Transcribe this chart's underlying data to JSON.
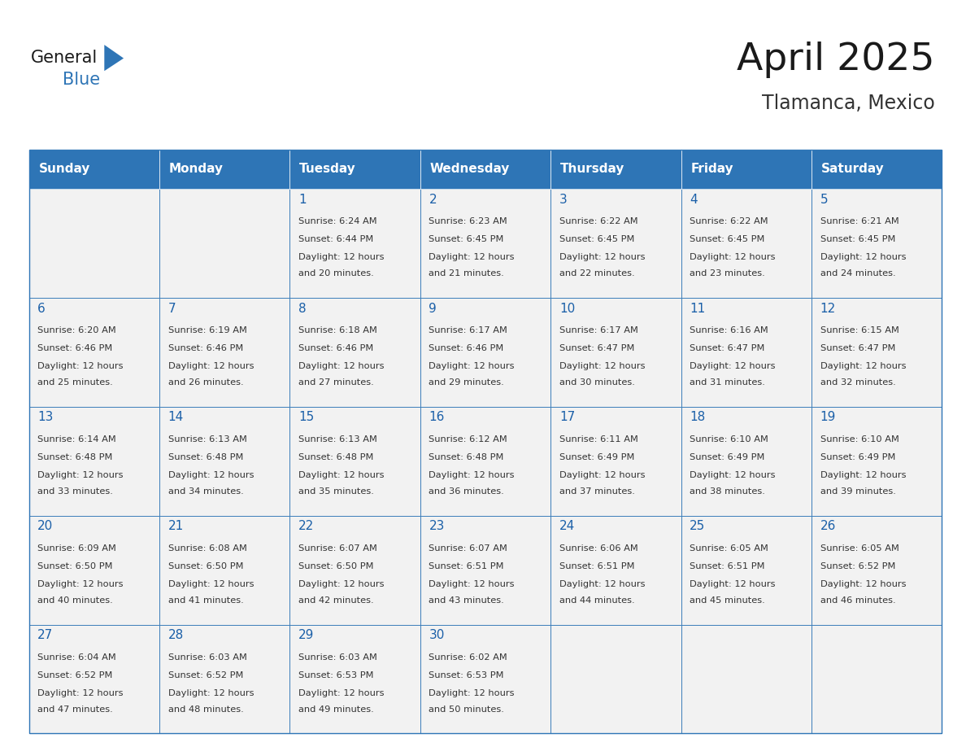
{
  "title": "April 2025",
  "subtitle": "Tlamanca, Mexico",
  "header_bg": "#2E75B6",
  "header_text_color": "#FFFFFF",
  "cell_bg": "#F2F2F2",
  "day_names": [
    "Sunday",
    "Monday",
    "Tuesday",
    "Wednesday",
    "Thursday",
    "Friday",
    "Saturday"
  ],
  "title_color": "#1a1a1a",
  "subtitle_color": "#333333",
  "day_number_color": "#1a5fa8",
  "cell_text_color": "#333333",
  "line_color": "#2E75B6",
  "logo_general_color": "#1a1a1a",
  "logo_blue_color": "#2E75B6",
  "weeks": [
    [
      {
        "date": "",
        "sunrise": "",
        "sunset": "",
        "daylight": ""
      },
      {
        "date": "",
        "sunrise": "",
        "sunset": "",
        "daylight": ""
      },
      {
        "date": "1",
        "sunrise": "6:24 AM",
        "sunset": "6:44 PM",
        "daylight": "12 hours and 20 minutes."
      },
      {
        "date": "2",
        "sunrise": "6:23 AM",
        "sunset": "6:45 PM",
        "daylight": "12 hours and 21 minutes."
      },
      {
        "date": "3",
        "sunrise": "6:22 AM",
        "sunset": "6:45 PM",
        "daylight": "12 hours and 22 minutes."
      },
      {
        "date": "4",
        "sunrise": "6:22 AM",
        "sunset": "6:45 PM",
        "daylight": "12 hours and 23 minutes."
      },
      {
        "date": "5",
        "sunrise": "6:21 AM",
        "sunset": "6:45 PM",
        "daylight": "12 hours and 24 minutes."
      }
    ],
    [
      {
        "date": "6",
        "sunrise": "6:20 AM",
        "sunset": "6:46 PM",
        "daylight": "12 hours and 25 minutes."
      },
      {
        "date": "7",
        "sunrise": "6:19 AM",
        "sunset": "6:46 PM",
        "daylight": "12 hours and 26 minutes."
      },
      {
        "date": "8",
        "sunrise": "6:18 AM",
        "sunset": "6:46 PM",
        "daylight": "12 hours and 27 minutes."
      },
      {
        "date": "9",
        "sunrise": "6:17 AM",
        "sunset": "6:46 PM",
        "daylight": "12 hours and 29 minutes."
      },
      {
        "date": "10",
        "sunrise": "6:17 AM",
        "sunset": "6:47 PM",
        "daylight": "12 hours and 30 minutes."
      },
      {
        "date": "11",
        "sunrise": "6:16 AM",
        "sunset": "6:47 PM",
        "daylight": "12 hours and 31 minutes."
      },
      {
        "date": "12",
        "sunrise": "6:15 AM",
        "sunset": "6:47 PM",
        "daylight": "12 hours and 32 minutes."
      }
    ],
    [
      {
        "date": "13",
        "sunrise": "6:14 AM",
        "sunset": "6:48 PM",
        "daylight": "12 hours and 33 minutes."
      },
      {
        "date": "14",
        "sunrise": "6:13 AM",
        "sunset": "6:48 PM",
        "daylight": "12 hours and 34 minutes."
      },
      {
        "date": "15",
        "sunrise": "6:13 AM",
        "sunset": "6:48 PM",
        "daylight": "12 hours and 35 minutes."
      },
      {
        "date": "16",
        "sunrise": "6:12 AM",
        "sunset": "6:48 PM",
        "daylight": "12 hours and 36 minutes."
      },
      {
        "date": "17",
        "sunrise": "6:11 AM",
        "sunset": "6:49 PM",
        "daylight": "12 hours and 37 minutes."
      },
      {
        "date": "18",
        "sunrise": "6:10 AM",
        "sunset": "6:49 PM",
        "daylight": "12 hours and 38 minutes."
      },
      {
        "date": "19",
        "sunrise": "6:10 AM",
        "sunset": "6:49 PM",
        "daylight": "12 hours and 39 minutes."
      }
    ],
    [
      {
        "date": "20",
        "sunrise": "6:09 AM",
        "sunset": "6:50 PM",
        "daylight": "12 hours and 40 minutes."
      },
      {
        "date": "21",
        "sunrise": "6:08 AM",
        "sunset": "6:50 PM",
        "daylight": "12 hours and 41 minutes."
      },
      {
        "date": "22",
        "sunrise": "6:07 AM",
        "sunset": "6:50 PM",
        "daylight": "12 hours and 42 minutes."
      },
      {
        "date": "23",
        "sunrise": "6:07 AM",
        "sunset": "6:51 PM",
        "daylight": "12 hours and 43 minutes."
      },
      {
        "date": "24",
        "sunrise": "6:06 AM",
        "sunset": "6:51 PM",
        "daylight": "12 hours and 44 minutes."
      },
      {
        "date": "25",
        "sunrise": "6:05 AM",
        "sunset": "6:51 PM",
        "daylight": "12 hours and 45 minutes."
      },
      {
        "date": "26",
        "sunrise": "6:05 AM",
        "sunset": "6:52 PM",
        "daylight": "12 hours and 46 minutes."
      }
    ],
    [
      {
        "date": "27",
        "sunrise": "6:04 AM",
        "sunset": "6:52 PM",
        "daylight": "12 hours and 47 minutes."
      },
      {
        "date": "28",
        "sunrise": "6:03 AM",
        "sunset": "6:52 PM",
        "daylight": "12 hours and 48 minutes."
      },
      {
        "date": "29",
        "sunrise": "6:03 AM",
        "sunset": "6:53 PM",
        "daylight": "12 hours and 49 minutes."
      },
      {
        "date": "30",
        "sunrise": "6:02 AM",
        "sunset": "6:53 PM",
        "daylight": "12 hours and 50 minutes."
      },
      {
        "date": "",
        "sunrise": "",
        "sunset": "",
        "daylight": ""
      },
      {
        "date": "",
        "sunrise": "",
        "sunset": "",
        "daylight": ""
      },
      {
        "date": "",
        "sunrise": "",
        "sunset": "",
        "daylight": ""
      }
    ]
  ]
}
